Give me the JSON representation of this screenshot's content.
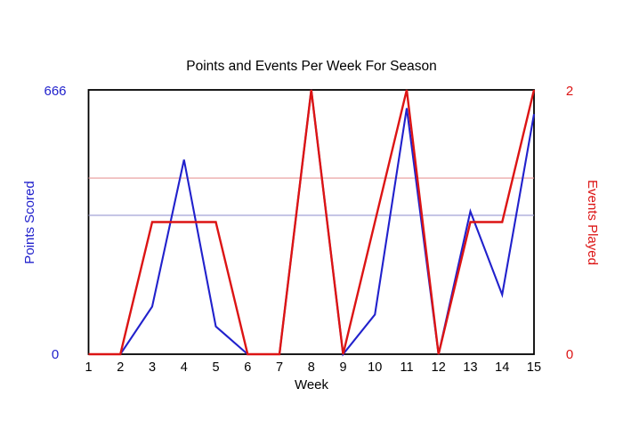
{
  "chart_data": {
    "type": "line",
    "title": "Points and Events Per Week For Season",
    "xlabel": "Week",
    "x": [
      1,
      2,
      3,
      4,
      5,
      6,
      7,
      8,
      9,
      10,
      11,
      12,
      13,
      14,
      15
    ],
    "series": [
      {
        "name": "Points Scored",
        "axis": "left",
        "color": "#2121CC",
        "values": [
          0,
          0,
          120,
          490,
          70,
          0,
          0,
          666,
          0,
          100,
          620,
          0,
          360,
          150,
          605
        ]
      },
      {
        "name": "Events Played",
        "axis": "right",
        "color": "#DC1414",
        "values": [
          0,
          0,
          1,
          1,
          1,
          0,
          0,
          2,
          0,
          1,
          2,
          0,
          1,
          1,
          2
        ]
      }
    ],
    "left_axis": {
      "label": "Points Scored",
      "min": 0,
      "max": 666,
      "min_label": "0",
      "max_label": "666",
      "color": "#2121CC"
    },
    "right_axis": {
      "label": "Events Played",
      "min": 0,
      "max": 2,
      "min_label": "0",
      "max_label": "2",
      "color": "#DC1414"
    },
    "reference_lines": [
      {
        "axis": "right",
        "value": 1.333,
        "color": "#E89898"
      },
      {
        "axis": "left",
        "value": 350,
        "color": "#9898D0"
      }
    ],
    "grid": false,
    "legend": "none",
    "plot_border_color": "#000000",
    "background_color": "#FFFFFF"
  }
}
